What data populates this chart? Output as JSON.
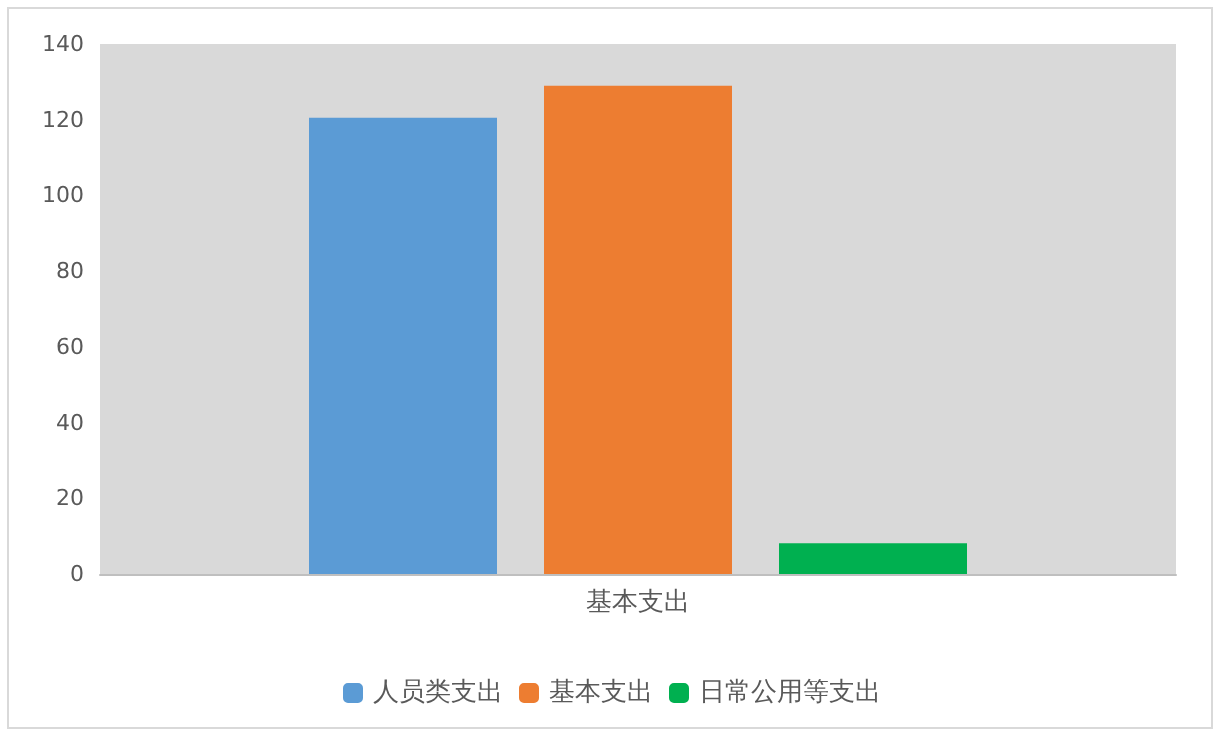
{
  "chart_data": {
    "type": "bar",
    "categories": [
      "基本支出"
    ],
    "series": [
      {
        "name": "人员类支出",
        "color": "#5b9bd5",
        "values": [
          120.5
        ]
      },
      {
        "name": "基本支出",
        "color": "#ed7d31",
        "values": [
          129
        ]
      },
      {
        "name": "日常公用等支出",
        "color": "#00b050",
        "values": [
          8.1
        ]
      }
    ],
    "ylim": [
      0,
      140
    ],
    "yticks": [
      0,
      20,
      40,
      60,
      80,
      100,
      120,
      140
    ],
    "grid": false,
    "legend": "bottom"
  }
}
